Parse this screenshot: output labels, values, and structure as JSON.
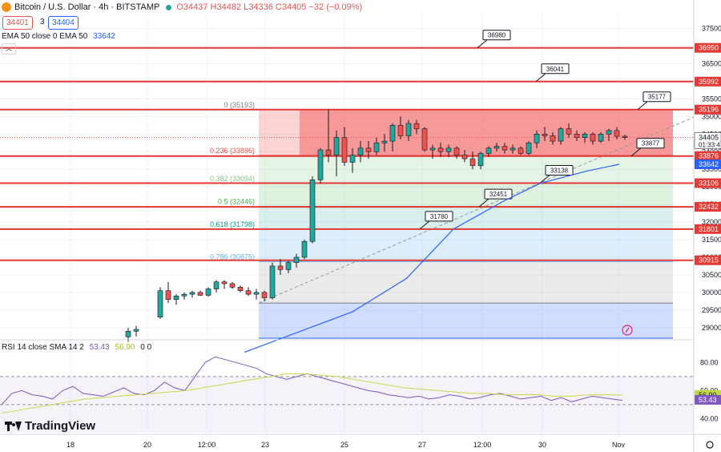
{
  "header": {
    "symbol": "Bitcoin / U.S. Dollar · 4h · BITSTAMP",
    "ohlc": "O34437 H34482 L34336 C34405 −32 (−0.09%)",
    "sell_price": "34401",
    "spread": "3",
    "buy_price": "34404"
  },
  "indicators": {
    "ema_label": "EMA 50 close 0 EMA 50",
    "ema_value": "33642",
    "rsi_label": "RSI 14 close SMA 14 2",
    "rsi_value": "53.43",
    "rsi_sma": "56.90",
    "rsi_extra": "0 0"
  },
  "logo": {
    "text": "TradingView"
  },
  "colors": {
    "up": "#26a69a",
    "down": "#ef5350",
    "level_line": "#e53935",
    "ema": "#2962ff",
    "rsi": "#7e57c2",
    "rsi_sma": "#c4d94a"
  },
  "chart_data": {
    "type": "candlestick",
    "interval": "4h",
    "ylim": [
      28700,
      37900
    ],
    "x_labels": [
      "18",
      "20",
      "12:00",
      "23",
      "25",
      "27",
      "12:00",
      "30",
      "Nov"
    ],
    "price_axis": [
      "37500",
      "37000",
      "36500",
      "36000",
      "35500",
      "35000",
      "34500",
      "34000",
      "33500",
      "33000",
      "32500",
      "32000",
      "31500",
      "31000",
      "30500",
      "30000",
      "29500",
      "29000"
    ],
    "last_price": {
      "value": "34405",
      "countdown": "01:33:4"
    },
    "horizontal_levels": [
      {
        "value": 36950,
        "label": "36950",
        "callout": "36980"
      },
      {
        "value": 35992,
        "label": "35992",
        "callout": "36041"
      },
      {
        "value": 35196,
        "label": "35196",
        "callout": "35177"
      },
      {
        "value": 33876,
        "label": "33876",
        "callout": "33877"
      },
      {
        "value": 33106,
        "label": "33106",
        "callout": "33138"
      },
      {
        "value": 32432,
        "label": "32432",
        "callout": "32451"
      },
      {
        "value": 31801,
        "label": "31801",
        "callout": "31780"
      },
      {
        "value": 30915,
        "label": "30915",
        "callout": ""
      }
    ],
    "fibonacci": [
      {
        "label": "0 (35193)",
        "value": 35193
      },
      {
        "label": "0.236 (33896)",
        "value": 33896
      },
      {
        "label": "0.382 (33094)",
        "value": 33094
      },
      {
        "label": "0.5 (32446)",
        "value": 32446
      },
      {
        "label": "0.618 (31798)",
        "value": 31798
      },
      {
        "label": "0.786 (30875)",
        "value": 30875
      },
      {
        "label": "",
        "value": 29700
      },
      {
        "label": "",
        "value": 28700
      }
    ],
    "ema_value_label": "33642",
    "candles": [
      [
        28740,
        29000,
        28600,
        28900
      ],
      [
        28900,
        29050,
        28750,
        28950
      ],
      [
        29300,
        30150,
        29250,
        30050
      ],
      [
        30050,
        30300,
        29700,
        29800
      ],
      [
        29800,
        29950,
        29650,
        29900
      ],
      [
        29900,
        30000,
        29800,
        29950
      ],
      [
        29950,
        30050,
        29850,
        30000
      ],
      [
        30000,
        30050,
        29900,
        29920
      ],
      [
        29920,
        30150,
        29880,
        30100
      ],
      [
        30100,
        30350,
        30000,
        30300
      ],
      [
        30300,
        30350,
        30100,
        30250
      ],
      [
        30250,
        30300,
        30100,
        30150
      ],
      [
        30150,
        30200,
        30000,
        30050
      ],
      [
        30050,
        30150,
        29900,
        29950
      ],
      [
        29950,
        30100,
        29800,
        30000
      ],
      [
        30000,
        30050,
        29750,
        29850
      ],
      [
        29850,
        30850,
        29800,
        30750
      ],
      [
        30750,
        30950,
        30500,
        30650
      ],
      [
        30650,
        30900,
        30550,
        30850
      ],
      [
        30850,
        31100,
        30700,
        31000
      ],
      [
        31000,
        31500,
        30950,
        31450
      ],
      [
        31450,
        33300,
        31400,
        33200
      ],
      [
        33200,
        34100,
        33100,
        34050
      ],
      [
        34050,
        35200,
        33700,
        33900
      ],
      [
        33900,
        34600,
        33300,
        34400
      ],
      [
        34400,
        34700,
        33600,
        33700
      ],
      [
        33700,
        34100,
        33400,
        33900
      ],
      [
        33900,
        34300,
        33700,
        34100
      ],
      [
        34100,
        34300,
        33800,
        34000
      ],
      [
        34000,
        34400,
        33900,
        34250
      ],
      [
        34250,
        34500,
        34000,
        34300
      ],
      [
        34300,
        34800,
        34000,
        34750
      ],
      [
        34750,
        35000,
        34350,
        34450
      ],
      [
        34450,
        34900,
        34300,
        34800
      ],
      [
        34800,
        34900,
        34500,
        34650
      ],
      [
        34650,
        34700,
        34000,
        34050
      ],
      [
        34050,
        34200,
        33800,
        34100
      ],
      [
        34100,
        34250,
        33850,
        34000
      ],
      [
        34000,
        34200,
        33850,
        34100
      ],
      [
        34100,
        34150,
        33800,
        33900
      ],
      [
        33900,
        34050,
        33700,
        33800
      ],
      [
        33800,
        34000,
        33500,
        33600
      ],
      [
        33600,
        34000,
        33500,
        33950
      ],
      [
        33950,
        34150,
        33850,
        34100
      ],
      [
        34100,
        34250,
        34000,
        34150
      ],
      [
        34150,
        34250,
        33950,
        34050
      ],
      [
        34050,
        34200,
        33950,
        34100
      ],
      [
        34100,
        34150,
        33900,
        33950
      ],
      [
        33950,
        34300,
        33900,
        34250
      ],
      [
        34250,
        34600,
        34100,
        34500
      ],
      [
        34500,
        34700,
        34300,
        34450
      ],
      [
        34450,
        34550,
        34200,
        34300
      ],
      [
        34300,
        34700,
        34200,
        34650
      ],
      [
        34650,
        34800,
        34400,
        34500
      ],
      [
        34500,
        34600,
        34300,
        34400
      ],
      [
        34400,
        34550,
        34250,
        34500
      ],
      [
        34500,
        34550,
        34200,
        34300
      ],
      [
        34300,
        34550,
        34250,
        34500
      ],
      [
        34500,
        34650,
        34300,
        34600
      ],
      [
        34600,
        34700,
        34350,
        34437
      ],
      [
        34437,
        34482,
        34336,
        34405
      ]
    ],
    "ema": [
      [
        0,
        28300
      ],
      [
        30,
        29450
      ],
      [
        45,
        30400
      ],
      [
        58,
        31800
      ],
      [
        72,
        32600
      ],
      [
        82,
        33100
      ],
      [
        95,
        33450
      ],
      [
        104,
        33642
      ]
    ],
    "rsi_ylim": [
      30,
      95
    ],
    "rsi_levels": [
      70,
      50
    ],
    "rsi_axis": [
      "80.00",
      "60.00",
      "40.00"
    ],
    "rsi": [
      50,
      58,
      60,
      57,
      56,
      54,
      60,
      63,
      58,
      57,
      56,
      59,
      62,
      58,
      57,
      60,
      66,
      62,
      60,
      70,
      80,
      84,
      82,
      80,
      78,
      76,
      72,
      70,
      68,
      70,
      72,
      70,
      68,
      66,
      64,
      62,
      60,
      59,
      57,
      56,
      55,
      56,
      54,
      55,
      57,
      56,
      54,
      55,
      57,
      58,
      56,
      54,
      55,
      56,
      53,
      55,
      52,
      54,
      56,
      55,
      54,
      53
    ],
    "rsi_sma": [
      44,
      46,
      48,
      50,
      52,
      54,
      55,
      56,
      57,
      58,
      59,
      60,
      62,
      64,
      66,
      68,
      70,
      72,
      72,
      71,
      70,
      68,
      66,
      64,
      62,
      61,
      60,
      59,
      58,
      58,
      57,
      57,
      57,
      56,
      56,
      57,
      57,
      56.9
    ]
  }
}
